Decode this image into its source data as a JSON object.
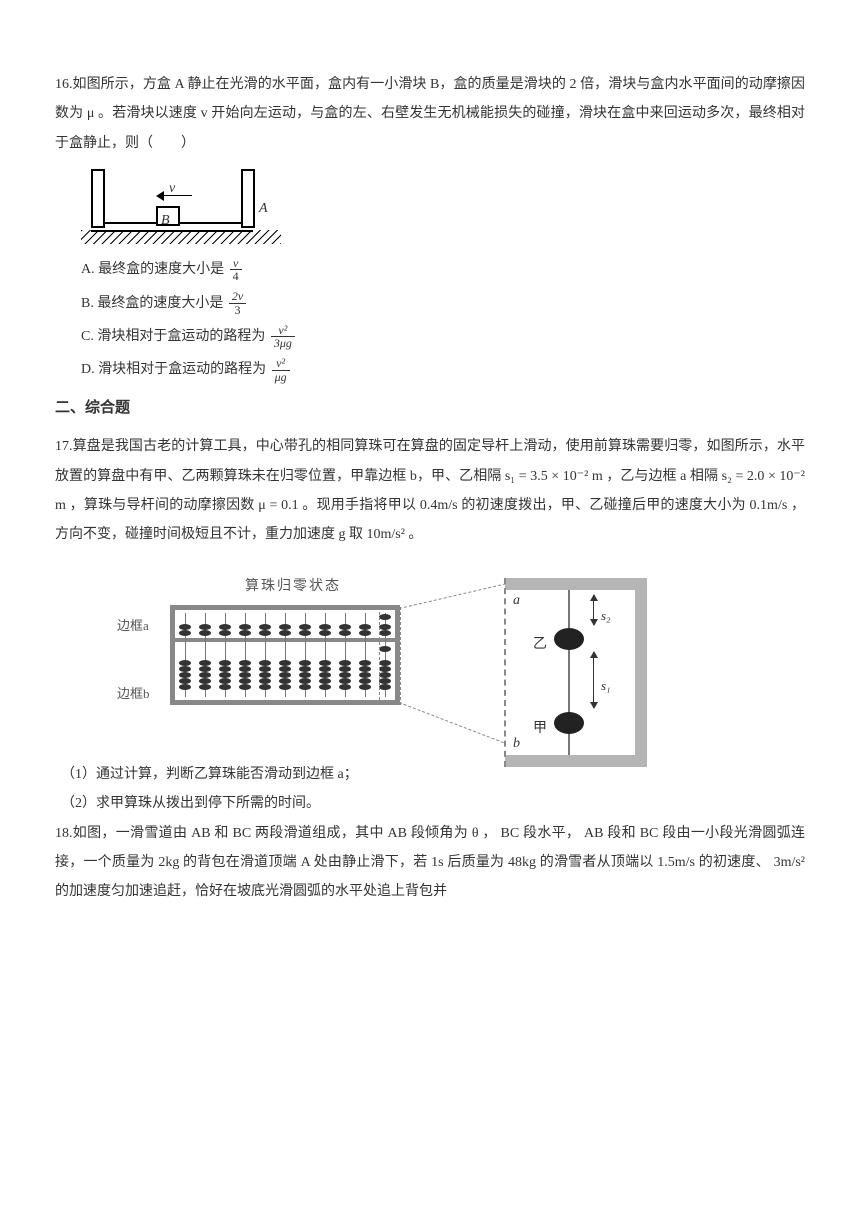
{
  "q16": {
    "stem": "16.如图所示，方盒 A 静止在光滑的水平面，盒内有一小滑块 B，盒的质量是滑块的 2 倍，滑块与盒内水平面间的动摩擦因数为 μ 。若滑块以速度 v 开始向左运动，与盒的左、右壁发生无机械能损失的碰撞，滑块在盒中来回运动多次，最终相对于盒静止，则（　　）",
    "options": {
      "A": "A. 最终盒的速度大小是",
      "B": "B. 最终盒的速度大小是",
      "C": "C. 滑块相对于盒运动的路程为",
      "D": "D. 滑块相对于盒运动的路程为"
    },
    "fracs": {
      "A": {
        "num": "v",
        "den": "4"
      },
      "B": {
        "num": "2v",
        "den": "3"
      },
      "C": {
        "num": "v²",
        "den": "3μg"
      },
      "D": {
        "num": "v²",
        "den": "μg"
      }
    },
    "fig": {
      "B": "B",
      "A": "A",
      "v": "v"
    }
  },
  "section2": "二、综合题",
  "q17": {
    "stem_a": "17.算盘是我国古老的计算工具，中心带孔的相同算珠可在算盘的固定导杆上滑动，使用前算珠需要归零，如图所示，水平放置的算盘中有甲、乙两颗算珠未在归零位置，甲靠边框 b，甲、乙相隔 ",
    "s1": "s₁ = 3.5 × 10⁻² m",
    "stem_b": " ，乙与边框 a 相隔 ",
    "s2": "s₂ = 2.0 × 10⁻² m",
    "stem_c": " ，算珠与导杆间的动摩擦因数 μ = 0.1 。现用手指将甲以 0.4m/s 的初速度拨出，甲、乙碰撞后甲的速度大小为 0.1m/s ，方向不变，碰撞时间极短且不计，重力加速度 g 取 10m/s² 。",
    "fig": {
      "caption": "算珠归零状态",
      "frame_a": "边框a",
      "frame_b": "边框b",
      "a": "a",
      "b": "b",
      "s1": "s₁",
      "s2": "s₂",
      "jia": "甲",
      "yi": "乙"
    },
    "subs": {
      "1": "（1）通过计算，判断乙算珠能否滑动到边框 a；",
      "2": "（2）求甲算珠从拨出到停下所需的时间。"
    }
  },
  "q18": {
    "stem": "18.如图，一滑雪道由 AB 和 BC 两段滑道组成，其中 AB 段倾角为 θ ， BC 段水平， AB 段和 BC 段由一小段光滑圆弧连接，一个质量为 2kg 的背包在滑道顶端 A 处由静止滑下，若 1s 后质量为 48kg 的滑雪者从顶端以 1.5m/s 的初速度、 3m/s² 的加速度匀加速追赶，恰好在坡底光滑圆弧的水平处追上背包并"
  }
}
